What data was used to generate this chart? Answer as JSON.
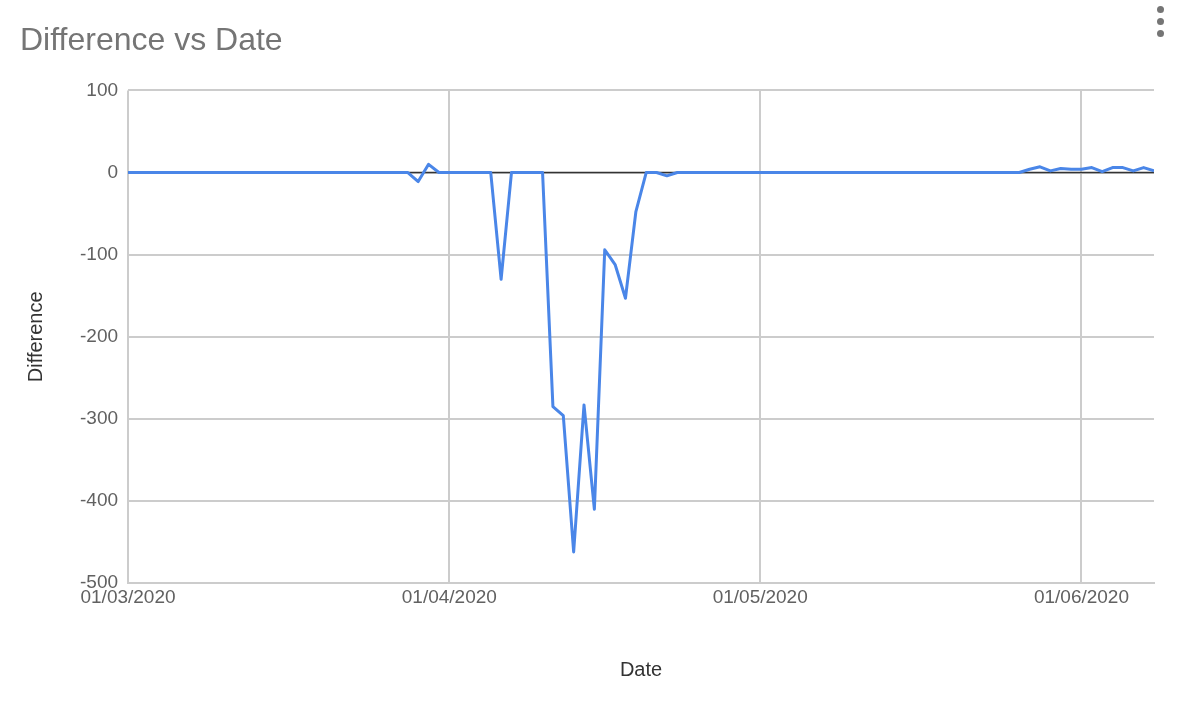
{
  "chart_data": {
    "type": "line",
    "title": "Difference vs Date",
    "xlabel": "Date",
    "ylabel": "Difference",
    "x": [
      "2020-03-01",
      "2020-03-28",
      "2020-03-29",
      "2020-03-30",
      "2020-03-31",
      "2020-04-05",
      "2020-04-06",
      "2020-04-07",
      "2020-04-10",
      "2020-04-11",
      "2020-04-12",
      "2020-04-13",
      "2020-04-14",
      "2020-04-15",
      "2020-04-16",
      "2020-04-17",
      "2020-04-18",
      "2020-04-19",
      "2020-04-20",
      "2020-04-21",
      "2020-04-22",
      "2020-04-23",
      "2020-05-26",
      "2020-05-27",
      "2020-05-28",
      "2020-05-29",
      "2020-05-30",
      "2020-05-31",
      "2020-06-01",
      "2020-06-02",
      "2020-06-03",
      "2020-06-04",
      "2020-06-05",
      "2020-06-06",
      "2020-06-07",
      "2020-06-08"
    ],
    "series": [
      {
        "color": "#4a86e8",
        "values": [
          0,
          0,
          -11,
          10,
          0,
          0,
          -130,
          0,
          0,
          -285,
          -296,
          -462,
          -283,
          -410,
          -94,
          -112,
          -153,
          -48,
          0,
          0,
          -4,
          0,
          0,
          4,
          7,
          2,
          5,
          4,
          4,
          6,
          1,
          6,
          6,
          2,
          6,
          2
        ]
      }
    ],
    "xlim": [
      "2020-03-01",
      "2020-06-08"
    ],
    "xticks": [
      {
        "value": "2020-03-01",
        "label": "01/03/2020"
      },
      {
        "value": "2020-04-01",
        "label": "01/04/2020"
      },
      {
        "value": "2020-05-01",
        "label": "01/05/2020"
      },
      {
        "value": "2020-06-01",
        "label": "01/06/2020"
      }
    ],
    "ylim": [
      -500,
      100
    ],
    "yticks": [
      -500,
      -400,
      -300,
      -200,
      -100,
      0,
      100
    ],
    "ref_lines": [
      {
        "axis": "y",
        "value": 0,
        "color": "#333333"
      }
    ],
    "grid": true,
    "legend": false,
    "marker": "none",
    "line_style": "solid"
  }
}
